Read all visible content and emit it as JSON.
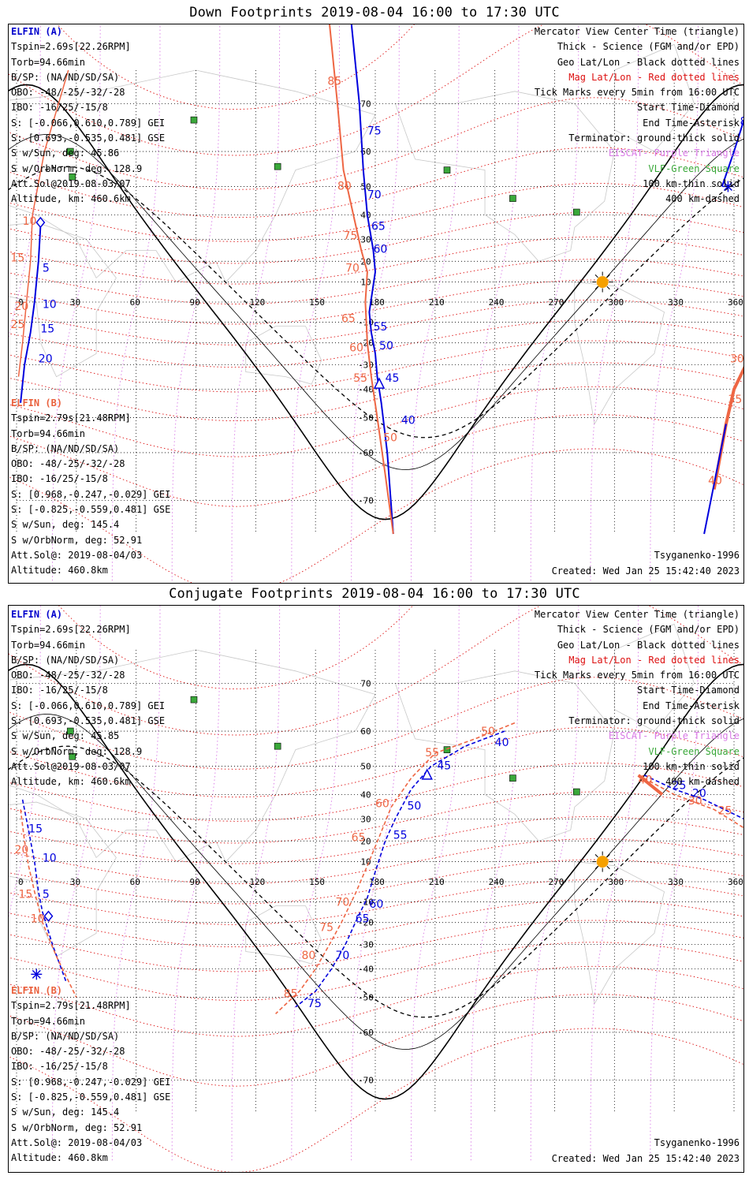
{
  "colors": {
    "elfin_a": "#0000dd",
    "elfin_b": "#ee6644",
    "geo_grid": "#000000",
    "mag_grid": "#dd1111",
    "terminator": "#000000",
    "eiscat": "#d97ae6",
    "vlf": "#3aa83a",
    "sun": "#f5a000"
  },
  "panels": [
    {
      "title": "Down Footprints 2019-08-04 16:00 to 17:30 UTC",
      "left_a": {
        "header": "ELFIN (A)",
        "lines": [
          "Tspin=2.69s[22.26RPM]",
          "Torb=94.66min",
          "B/SP: (NA/ND/SD/SA)",
          "OBO: -48/-25/-32/-28",
          "IBO: -16/25/-15/8",
          "S: [-0.066,0.610,0.789] GEI",
          "S: [0.693,-0.535,0.481] GSE",
          "S w/Sun, deg: 45.86",
          "S w/OrbNorm, deg: 128.9",
          "Att.Sol@2019-08-03/07",
          "Altitude, km: 460.6km"
        ]
      },
      "left_b": {
        "header": "ELFIN (B)",
        "lines": [
          "Tspin=2.79s[21.48RPM]",
          "Torb=94.66min",
          "B/SP: (NA/ND/SD/SA)",
          "OBO: -48/-25/-32/-28",
          "IBO: -16/25/-15/8",
          "S: [0.968,-0.247,-0.029] GEI",
          "S: [-0.825,-0.559,0.481] GSE",
          "S w/Sun, deg: 145.4",
          "S w/OrbNorm, deg: 52.91",
          "Att.Sol@: 2019-08-04/03",
          "Altitude: 460.8km"
        ]
      },
      "legend": [
        "Mercator View Center Time (triangle)",
        "Thick - Science (FGM and/or EPD)",
        "Geo Lat/Lon - Black dotted lines",
        "Mag Lat/Lon - Red dotted lines",
        "Tick Marks every 5min from 16:00 UTC",
        "Start Time-Diamond",
        "End Time-Asterisk",
        "Terminator: ground-thick solid",
        "EISCAT- Purple Triangle",
        "VLF-Green Square",
        "100 km-thin solid",
        "400 km-dashed"
      ],
      "model": "Tsyganenko-1996",
      "created": "Created: Wed Jan 25 15:42:40 2023"
    },
    {
      "title": "Conjugate Footprints 2019-08-04 16:00 to 17:30 UTC",
      "left_a": {
        "header": "ELFIN (A)",
        "lines": [
          "Tspin=2.69s[22.26RPM]",
          "Torb=94.66min",
          "B/SP: (NA/ND/SD/SA)",
          "OBO: -48/-25/-32/-28",
          "IBO: -16/25/-15/8",
          "S: [-0.066,0.610,0.789] GEI",
          "S: [0.693,-0.535,0.481] GSE",
          "S w/Sun, deg: 45.85",
          "S w/OrbNorm, deg: 128.9",
          "Att.Sol@2019-08-03/07",
          "Altitude, km: 460.6km"
        ]
      },
      "left_b": {
        "header": "ELFIN (B)",
        "lines": [
          "Tspin=2.79s[21.48RPM]",
          "Torb=94.66min",
          "B/SP: (NA/ND/SD/SA)",
          "OBO: -48/-25/-32/-28",
          "IBO: -16/25/-15/8",
          "S: [0.968,-0.247,-0.029] GEI",
          "S: [-0.825,-0.559,0.481] GSE",
          "S w/Sun, deg: 145.4",
          "S w/OrbNorm, deg: 52.91",
          "Att.Sol@: 2019-08-04/03",
          "Altitude: 460.8km"
        ]
      },
      "legend": [
        "Mercator View Center Time (triangle)",
        "Thick - Science (FGM and/or EPD)",
        "Geo Lat/Lon - Black dotted lines",
        "Mag Lat/Lon - Red dotted lines",
        "Tick Marks every 5min from 16:00 UTC",
        "Start Time-Diamond",
        "End Time-Asterisk",
        "Terminator: ground-thick solid",
        "EISCAT- Purple Triangle",
        "VLF-Green Square",
        "100 km-thin solid",
        "400 km-dashed"
      ],
      "model": "Tsyganenko-1996",
      "created": "Created: Wed Jan 25 15:42:40 2023"
    }
  ],
  "map": {
    "lon_ticks": [
      "0",
      "30",
      "60",
      "90",
      "120",
      "150",
      "180",
      "210",
      "240",
      "270",
      "300",
      "330",
      "360"
    ],
    "lat_ticks": [
      "70",
      "60",
      "50",
      "40",
      "30",
      "20",
      "10",
      "-10",
      "-20",
      "-30",
      "-40",
      "-50",
      "-60",
      "-70"
    ],
    "vlf_stations": [
      [
        89,
        67
      ],
      [
        27,
        60
      ],
      [
        28,
        53
      ],
      [
        131,
        56
      ],
      [
        216,
        55
      ],
      [
        249,
        46
      ],
      [
        281,
        41
      ]
    ],
    "sun": [
      294,
      10
    ]
  },
  "tracks": {
    "down_a_labels": [
      [
        "75",
        176,
        64
      ],
      [
        "70",
        176,
        46
      ],
      [
        "65",
        178,
        34
      ],
      [
        "60",
        179,
        24
      ],
      [
        "55",
        179,
        -14
      ],
      [
        "50",
        182,
        -23
      ],
      [
        "45",
        185,
        -37
      ],
      [
        "40",
        193,
        -52
      ],
      [
        "85",
        363,
        66
      ],
      [
        "5",
        13,
        15
      ],
      [
        "10",
        13,
        -3
      ],
      [
        "15",
        12,
        -15
      ],
      [
        "20",
        11,
        -29
      ]
    ],
    "down_b_labels": [
      [
        "85",
        156,
        73
      ],
      [
        "80",
        161,
        49
      ],
      [
        "75",
        164,
        30
      ],
      [
        "70",
        165,
        15
      ],
      [
        "65",
        163,
        -10
      ],
      [
        "60",
        167,
        -24
      ],
      [
        "55",
        169,
        -37
      ],
      [
        "50",
        184,
        -57
      ],
      [
        "30",
        358,
        -29
      ],
      [
        "35",
        357,
        -45
      ],
      [
        "40",
        347,
        -67
      ],
      [
        "10",
        3,
        36
      ],
      [
        "15",
        -3,
        20
      ],
      [
        "20",
        -1,
        -4
      ],
      [
        "25",
        -3,
        -13
      ]
    ],
    "conj_a_labels": [
      [
        "40",
        240,
        56
      ],
      [
        "45",
        211,
        49
      ],
      [
        "50",
        196,
        34
      ],
      [
        "55",
        189,
        21
      ],
      [
        "60",
        177,
        -13
      ],
      [
        "65",
        170,
        -20
      ],
      [
        "70",
        160,
        -36
      ],
      [
        "75",
        146,
        -53
      ],
      [
        "5",
        13,
        -8
      ],
      [
        "10",
        13,
        10
      ],
      [
        "15",
        6,
        24
      ],
      [
        "25",
        329,
        42
      ],
      [
        "20",
        339,
        39
      ]
    ],
    "conj_b_labels": [
      [
        "50",
        233,
        59
      ],
      [
        "55",
        205,
        53
      ],
      [
        "60",
        180,
        35
      ],
      [
        "65",
        168,
        20
      ],
      [
        "70",
        160,
        -12
      ],
      [
        "75",
        152,
        -24
      ],
      [
        "80",
        143,
        -36
      ],
      [
        "85",
        134,
        -50
      ],
      [
        "10",
        7,
        -20
      ],
      [
        "15",
        1,
        -8
      ],
      [
        "20",
        -1,
        14
      ],
      [
        "40",
        312,
        44
      ],
      [
        "30",
        337,
        36
      ],
      [
        "25",
        352,
        32
      ]
    ]
  }
}
